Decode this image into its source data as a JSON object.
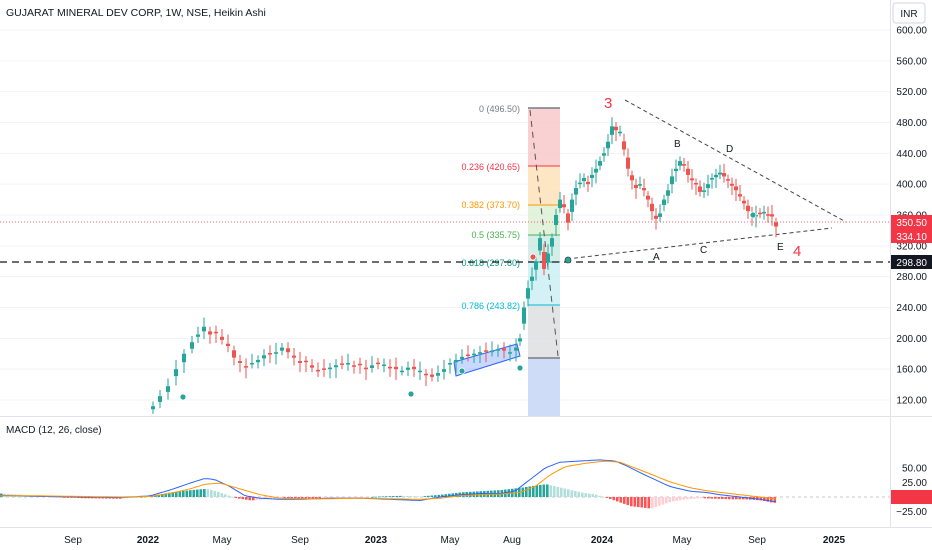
{
  "header": {
    "title": "GUJARAT MINERAL DEV CORP, 1W, NSE, Heikin Ashi",
    "currency": "INR"
  },
  "colors": {
    "up": "#26a69a",
    "down": "#ef5350",
    "macd_line": "#2962ff",
    "signal_line": "#ff9800",
    "price_tag": "#f23645",
    "level_tag": "#131722"
  },
  "price_axis": {
    "ticks": [
      "600.00",
      "560.00",
      "520.00",
      "480.00",
      "440.00",
      "400.00",
      "360.00",
      "320.00",
      "280.00",
      "240.00",
      "200.00",
      "160.00",
      "120.00"
    ],
    "price_tag_1": "350.50",
    "price_tag_2": "334.10",
    "level_tag": "298.80"
  },
  "macd": {
    "label": "MACD (12, 26, close)",
    "ticks": [
      "50.00",
      "25.00",
      "0.00",
      "−25.00"
    ]
  },
  "time_axis": {
    "labels": [
      "Sep",
      "2022",
      "May",
      "Sep",
      "2023",
      "May",
      "Aug",
      "2024",
      "May",
      "Sep",
      "2025"
    ]
  },
  "fib": {
    "levels": [
      {
        "text": "0 (496.50)",
        "color": "#787b86"
      },
      {
        "text": "0.236 (420.65)",
        "color": "#f23645"
      },
      {
        "text": "0.382 (373.70)",
        "color": "#ff9800"
      },
      {
        "text": "0.5 (335.75)",
        "color": "#4caf50"
      },
      {
        "text": "0.618 (297.80)",
        "color": "#089981"
      },
      {
        "text": "0.786 (243.82)",
        "color": "#00bcd4"
      }
    ]
  },
  "annotations": {
    "wave3": "3",
    "wave4": "4",
    "A": "A",
    "B": "B",
    "C": "C",
    "D": "D",
    "E": "E"
  }
}
